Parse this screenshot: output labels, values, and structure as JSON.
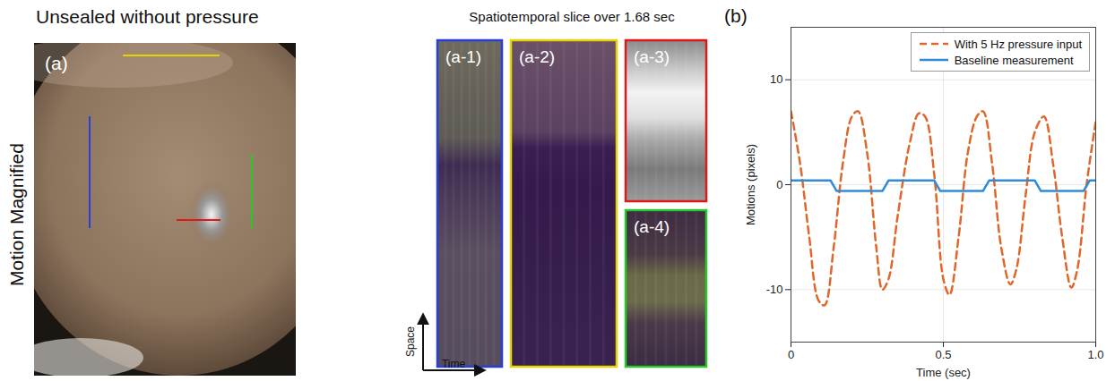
{
  "figure": {
    "row_label": "Motion Magnified",
    "panel_a": {
      "title": "Unsealed without pressure",
      "label": "(a)"
    },
    "slices": {
      "title": "Spatiotemporal slice over 1.68 sec",
      "labels": [
        "(a-1)",
        "(a-2)",
        "(a-3)",
        "(a-4)"
      ],
      "axis_space": "Space",
      "axis_time": "Time"
    },
    "panel_b_label": "(b)"
  },
  "chart_data": {
    "type": "line",
    "xlabel": "Time (sec)",
    "ylabel": "Motions (pixels)",
    "xlim": [
      0,
      1
    ],
    "xticks": [
      0,
      0.5,
      {
        "value": 1,
        "label": "1.0"
      }
    ],
    "ylim": [
      -15,
      15
    ],
    "yticks": [
      -10,
      0,
      10
    ],
    "grid": true,
    "legend": "top-right",
    "series": [
      {
        "name": "With 5 Hz pressure input",
        "color": "#e0662a",
        "line_style": "dashed",
        "x": [
          0,
          0.03,
          0.06,
          0.09,
          0.11,
          0.14,
          0.17,
          0.2,
          0.22,
          0.25,
          0.28,
          0.3,
          0.32,
          0.35,
          0.39,
          0.42,
          0.44,
          0.47,
          0.5,
          0.52,
          0.55,
          0.58,
          0.61,
          0.63,
          0.66,
          0.69,
          0.72,
          0.74,
          0.77,
          0.8,
          0.83,
          0.86,
          0.89,
          0.92,
          0.94,
          0.97,
          1.0
        ],
        "values": [
          7,
          2,
          -5,
          -11,
          -11.5,
          -6,
          2,
          6.5,
          7,
          3,
          -6,
          -10,
          -9,
          -3,
          4,
          6.8,
          6.5,
          1,
          -9,
          -10.5,
          -5,
          3,
          6.5,
          7,
          2,
          -6,
          -9.5,
          -8,
          -1,
          5,
          6.5,
          2,
          -5,
          -9.8,
          -8,
          0,
          6
        ]
      },
      {
        "name": "Baseline measurement",
        "color": "#2f8ad8",
        "line_style": "solid",
        "x": [
          0,
          0.13,
          0.15,
          0.3,
          0.32,
          0.47,
          0.49,
          0.63,
          0.65,
          0.8,
          0.82,
          0.96,
          0.98,
          1.0
        ],
        "values": [
          0.4,
          0.4,
          -0.6,
          -0.6,
          0.4,
          0.4,
          -0.6,
          -0.6,
          0.4,
          0.4,
          -0.6,
          -0.6,
          0.4,
          0.4
        ]
      }
    ]
  }
}
